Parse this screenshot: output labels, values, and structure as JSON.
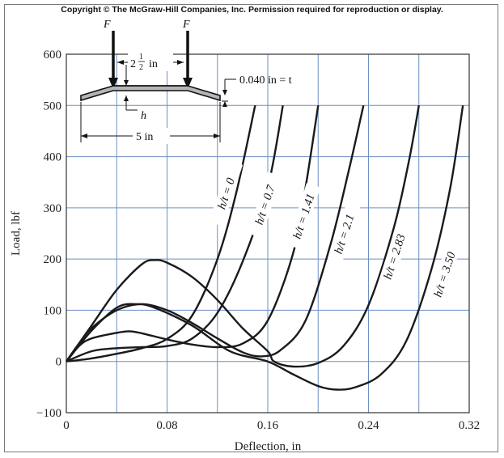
{
  "copyright": "Copyright © The McGraw-Hill Companies, Inc. Permission required for reproduction or display.",
  "inset": {
    "force_label": "F",
    "spacing_label": "2",
    "spacing_frac_num": "1",
    "spacing_frac_den": "2",
    "spacing_unit": "in",
    "thickness_label": "0.040 in = t",
    "height_label": "h",
    "width_label": "5 in"
  },
  "chart_data": {
    "type": "line",
    "title": "",
    "xlabel": "Deflection, in",
    "ylabel": "Load, lbf",
    "xlim": [
      0,
      0.32
    ],
    "ylim": [
      -100,
      600
    ],
    "xticks": [
      "0",
      "0.08",
      "0.16",
      "0.24",
      "0.32"
    ],
    "yticks": [
      "600",
      "500",
      "400",
      "300",
      "200",
      "100",
      "0",
      "−100"
    ],
    "grid": true,
    "series": [
      {
        "name": "h/t = 0",
        "points": [
          [
            0,
            0
          ],
          [
            0.02,
            6
          ],
          [
            0.04,
            15
          ],
          [
            0.06,
            26
          ],
          [
            0.08,
            44
          ],
          [
            0.1,
            90
          ],
          [
            0.12,
            200
          ],
          [
            0.135,
            330
          ],
          [
            0.15,
            500
          ]
        ]
      },
      {
        "name": "h/t = 0.7",
        "points": [
          [
            0,
            0
          ],
          [
            0.02,
            20
          ],
          [
            0.04,
            26
          ],
          [
            0.06,
            28
          ],
          [
            0.08,
            30
          ],
          [
            0.1,
            45
          ],
          [
            0.12,
            95
          ],
          [
            0.14,
            195
          ],
          [
            0.16,
            340
          ],
          [
            0.172,
            500
          ]
        ]
      },
      {
        "name": "h/t = 1.41",
        "points": [
          [
            0,
            0
          ],
          [
            0.01,
            30
          ],
          [
            0.02,
            45
          ],
          [
            0.04,
            56
          ],
          [
            0.05,
            59
          ],
          [
            0.06,
            55
          ],
          [
            0.08,
            43
          ],
          [
            0.1,
            33
          ],
          [
            0.12,
            28
          ],
          [
            0.14,
            35
          ],
          [
            0.16,
            80
          ],
          [
            0.18,
            210
          ],
          [
            0.19,
            340
          ],
          [
            0.2,
            500
          ]
        ]
      },
      {
        "name": "h/t = 2.1",
        "points": [
          [
            0,
            0
          ],
          [
            0.01,
            35
          ],
          [
            0.02,
            65
          ],
          [
            0.04,
            100
          ],
          [
            0.06,
            112
          ],
          [
            0.08,
            100
          ],
          [
            0.1,
            75
          ],
          [
            0.12,
            45
          ],
          [
            0.14,
            18
          ],
          [
            0.155,
            10
          ],
          [
            0.17,
            22
          ],
          [
            0.19,
            80
          ],
          [
            0.21,
            230
          ],
          [
            0.225,
            380
          ],
          [
            0.236,
            500
          ]
        ]
      },
      {
        "name": "h/t = 2.83",
        "points": [
          [
            0,
            0
          ],
          [
            0.02,
            70
          ],
          [
            0.04,
            140
          ],
          [
            0.06,
            190
          ],
          [
            0.07,
            198
          ],
          [
            0.08,
            193
          ],
          [
            0.1,
            165
          ],
          [
            0.12,
            120
          ],
          [
            0.14,
            65
          ],
          [
            0.16,
            20
          ],
          [
            0.165,
            0
          ],
          [
            0.18,
            -10
          ],
          [
            0.2,
            -3
          ],
          [
            0.22,
            30
          ],
          [
            0.24,
            110
          ],
          [
            0.26,
            260
          ],
          [
            0.272,
            390
          ],
          [
            0.28,
            500
          ]
        ]
      },
      {
        "name": "h/t = 3.50",
        "points": [
          [
            0,
            0
          ],
          [
            0.02,
            60
          ],
          [
            0.04,
            105
          ],
          [
            0.055,
            112
          ],
          [
            0.07,
            105
          ],
          [
            0.1,
            70
          ],
          [
            0.13,
            20
          ],
          [
            0.16,
            0
          ],
          [
            0.18,
            -25
          ],
          [
            0.2,
            -48
          ],
          [
            0.215,
            -55
          ],
          [
            0.23,
            -50
          ],
          [
            0.25,
            -25
          ],
          [
            0.27,
            40
          ],
          [
            0.29,
            180
          ],
          [
            0.305,
            340
          ],
          [
            0.315,
            500
          ]
        ]
      }
    ]
  }
}
